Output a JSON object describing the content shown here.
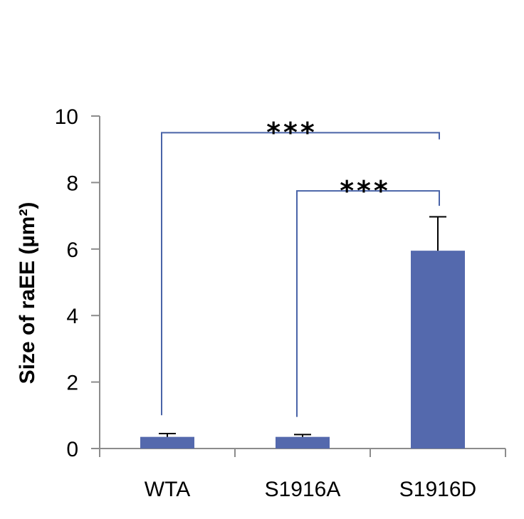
{
  "chart_data": {
    "type": "bar",
    "title": "",
    "xlabel": "",
    "ylabel": "Size of raEE (µm²)",
    "categories": [
      "WTA",
      "S1916A",
      "S1916D"
    ],
    "values": [
      0.35,
      0.35,
      5.95
    ],
    "errors": [
      0.1,
      0.07,
      1.02
    ],
    "ylim": [
      0,
      10
    ],
    "yticks": [
      "0",
      "2",
      "4",
      "6",
      "8",
      "10"
    ],
    "bar_color": "#5469ad",
    "bracket_color": "#4a64a8",
    "significance": [
      {
        "from": "WTA",
        "to": "S1916D",
        "label": "***"
      },
      {
        "from": "S1916A",
        "to": "S1916D",
        "label": "***"
      }
    ]
  }
}
